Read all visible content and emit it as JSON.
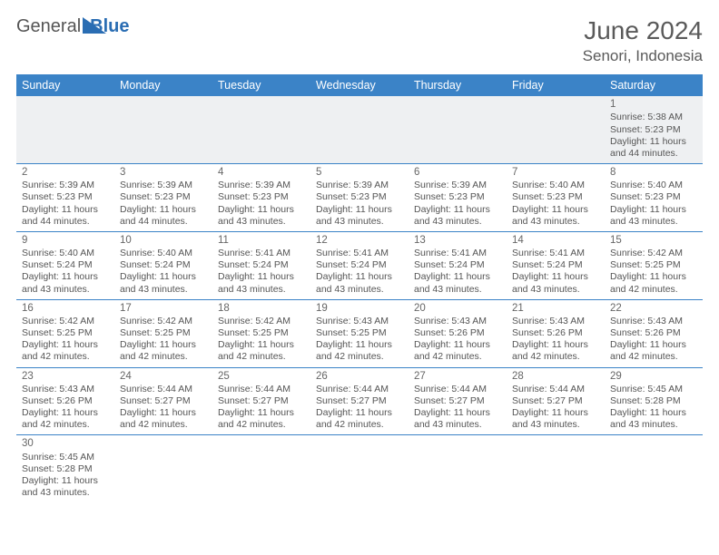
{
  "brand": {
    "general": "General",
    "blue": "Blue"
  },
  "title": "June 2024",
  "location": "Senori, Indonesia",
  "colors": {
    "header_bg": "#3b83c7",
    "header_text": "#ffffff",
    "rule": "#3b83c7",
    "body_text": "#555555",
    "title_text": "#5a5a5a",
    "first_row_bg": "#eef0f2"
  },
  "weekdays": [
    "Sunday",
    "Monday",
    "Tuesday",
    "Wednesday",
    "Thursday",
    "Friday",
    "Saturday"
  ],
  "weeks": [
    [
      null,
      null,
      null,
      null,
      null,
      null,
      {
        "n": "1",
        "sr": "Sunrise: 5:38 AM",
        "ss": "Sunset: 5:23 PM",
        "d1": "Daylight: 11 hours",
        "d2": "and 44 minutes."
      }
    ],
    [
      {
        "n": "2",
        "sr": "Sunrise: 5:39 AM",
        "ss": "Sunset: 5:23 PM",
        "d1": "Daylight: 11 hours",
        "d2": "and 44 minutes."
      },
      {
        "n": "3",
        "sr": "Sunrise: 5:39 AM",
        "ss": "Sunset: 5:23 PM",
        "d1": "Daylight: 11 hours",
        "d2": "and 44 minutes."
      },
      {
        "n": "4",
        "sr": "Sunrise: 5:39 AM",
        "ss": "Sunset: 5:23 PM",
        "d1": "Daylight: 11 hours",
        "d2": "and 43 minutes."
      },
      {
        "n": "5",
        "sr": "Sunrise: 5:39 AM",
        "ss": "Sunset: 5:23 PM",
        "d1": "Daylight: 11 hours",
        "d2": "and 43 minutes."
      },
      {
        "n": "6",
        "sr": "Sunrise: 5:39 AM",
        "ss": "Sunset: 5:23 PM",
        "d1": "Daylight: 11 hours",
        "d2": "and 43 minutes."
      },
      {
        "n": "7",
        "sr": "Sunrise: 5:40 AM",
        "ss": "Sunset: 5:23 PM",
        "d1": "Daylight: 11 hours",
        "d2": "and 43 minutes."
      },
      {
        "n": "8",
        "sr": "Sunrise: 5:40 AM",
        "ss": "Sunset: 5:23 PM",
        "d1": "Daylight: 11 hours",
        "d2": "and 43 minutes."
      }
    ],
    [
      {
        "n": "9",
        "sr": "Sunrise: 5:40 AM",
        "ss": "Sunset: 5:24 PM",
        "d1": "Daylight: 11 hours",
        "d2": "and 43 minutes."
      },
      {
        "n": "10",
        "sr": "Sunrise: 5:40 AM",
        "ss": "Sunset: 5:24 PM",
        "d1": "Daylight: 11 hours",
        "d2": "and 43 minutes."
      },
      {
        "n": "11",
        "sr": "Sunrise: 5:41 AM",
        "ss": "Sunset: 5:24 PM",
        "d1": "Daylight: 11 hours",
        "d2": "and 43 minutes."
      },
      {
        "n": "12",
        "sr": "Sunrise: 5:41 AM",
        "ss": "Sunset: 5:24 PM",
        "d1": "Daylight: 11 hours",
        "d2": "and 43 minutes."
      },
      {
        "n": "13",
        "sr": "Sunrise: 5:41 AM",
        "ss": "Sunset: 5:24 PM",
        "d1": "Daylight: 11 hours",
        "d2": "and 43 minutes."
      },
      {
        "n": "14",
        "sr": "Sunrise: 5:41 AM",
        "ss": "Sunset: 5:24 PM",
        "d1": "Daylight: 11 hours",
        "d2": "and 43 minutes."
      },
      {
        "n": "15",
        "sr": "Sunrise: 5:42 AM",
        "ss": "Sunset: 5:25 PM",
        "d1": "Daylight: 11 hours",
        "d2": "and 42 minutes."
      }
    ],
    [
      {
        "n": "16",
        "sr": "Sunrise: 5:42 AM",
        "ss": "Sunset: 5:25 PM",
        "d1": "Daylight: 11 hours",
        "d2": "and 42 minutes."
      },
      {
        "n": "17",
        "sr": "Sunrise: 5:42 AM",
        "ss": "Sunset: 5:25 PM",
        "d1": "Daylight: 11 hours",
        "d2": "and 42 minutes."
      },
      {
        "n": "18",
        "sr": "Sunrise: 5:42 AM",
        "ss": "Sunset: 5:25 PM",
        "d1": "Daylight: 11 hours",
        "d2": "and 42 minutes."
      },
      {
        "n": "19",
        "sr": "Sunrise: 5:43 AM",
        "ss": "Sunset: 5:25 PM",
        "d1": "Daylight: 11 hours",
        "d2": "and 42 minutes."
      },
      {
        "n": "20",
        "sr": "Sunrise: 5:43 AM",
        "ss": "Sunset: 5:26 PM",
        "d1": "Daylight: 11 hours",
        "d2": "and 42 minutes."
      },
      {
        "n": "21",
        "sr": "Sunrise: 5:43 AM",
        "ss": "Sunset: 5:26 PM",
        "d1": "Daylight: 11 hours",
        "d2": "and 42 minutes."
      },
      {
        "n": "22",
        "sr": "Sunrise: 5:43 AM",
        "ss": "Sunset: 5:26 PM",
        "d1": "Daylight: 11 hours",
        "d2": "and 42 minutes."
      }
    ],
    [
      {
        "n": "23",
        "sr": "Sunrise: 5:43 AM",
        "ss": "Sunset: 5:26 PM",
        "d1": "Daylight: 11 hours",
        "d2": "and 42 minutes."
      },
      {
        "n": "24",
        "sr": "Sunrise: 5:44 AM",
        "ss": "Sunset: 5:27 PM",
        "d1": "Daylight: 11 hours",
        "d2": "and 42 minutes."
      },
      {
        "n": "25",
        "sr": "Sunrise: 5:44 AM",
        "ss": "Sunset: 5:27 PM",
        "d1": "Daylight: 11 hours",
        "d2": "and 42 minutes."
      },
      {
        "n": "26",
        "sr": "Sunrise: 5:44 AM",
        "ss": "Sunset: 5:27 PM",
        "d1": "Daylight: 11 hours",
        "d2": "and 42 minutes."
      },
      {
        "n": "27",
        "sr": "Sunrise: 5:44 AM",
        "ss": "Sunset: 5:27 PM",
        "d1": "Daylight: 11 hours",
        "d2": "and 43 minutes."
      },
      {
        "n": "28",
        "sr": "Sunrise: 5:44 AM",
        "ss": "Sunset: 5:27 PM",
        "d1": "Daylight: 11 hours",
        "d2": "and 43 minutes."
      },
      {
        "n": "29",
        "sr": "Sunrise: 5:45 AM",
        "ss": "Sunset: 5:28 PM",
        "d1": "Daylight: 11 hours",
        "d2": "and 43 minutes."
      }
    ],
    [
      {
        "n": "30",
        "sr": "Sunrise: 5:45 AM",
        "ss": "Sunset: 5:28 PM",
        "d1": "Daylight: 11 hours",
        "d2": "and 43 minutes."
      },
      null,
      null,
      null,
      null,
      null,
      null
    ]
  ]
}
